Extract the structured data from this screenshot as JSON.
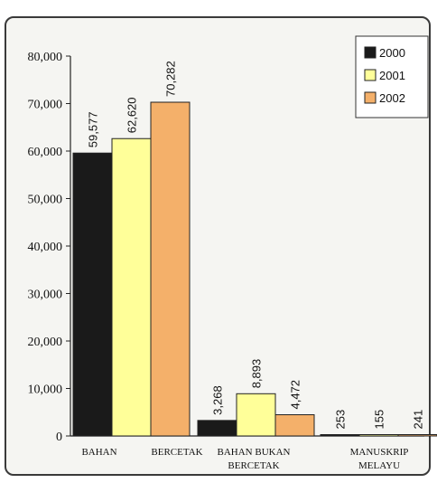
{
  "chart_data": {
    "type": "bar",
    "title": "",
    "xlabel": "",
    "ylabel": "",
    "ylim": [
      0,
      80000
    ],
    "yticks": [
      "0",
      "10,000",
      "20,000",
      "30,000",
      "40,000",
      "50,000",
      "60,000",
      "70,000",
      "80,000"
    ],
    "categories": [
      {
        "lines": [
          "BAHAN",
          "BERCETAK"
        ]
      },
      {
        "lines": [
          "BAHAN BUKAN",
          "BERCETAK"
        ]
      },
      {
        "lines": [
          "MANUSKRIP",
          "MELAYU"
        ]
      }
    ],
    "series": [
      {
        "name": "2000",
        "color": "#1a1a1a",
        "values": [
          59577,
          3268,
          253
        ],
        "labels": [
          "59,577",
          "3,268",
          "253"
        ]
      },
      {
        "name": "2001",
        "color": "#ffff99",
        "values": [
          62620,
          8893,
          155
        ],
        "labels": [
          "62,620",
          "8,893",
          "155"
        ]
      },
      {
        "name": "2002",
        "color": "#f4b06a",
        "values": [
          70282,
          4472,
          241
        ],
        "labels": [
          "70,282",
          "4,472",
          "241"
        ]
      }
    ],
    "legend_position": "top-right",
    "grid": false
  }
}
